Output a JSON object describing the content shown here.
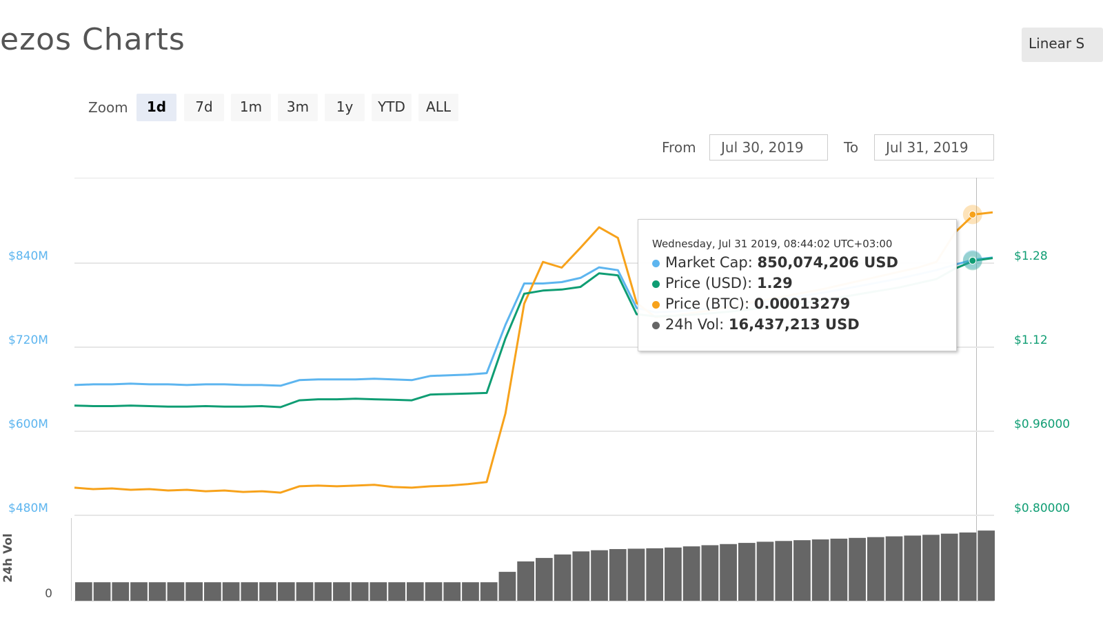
{
  "header": {
    "title": "ezos Charts",
    "scale_button": "Linear S"
  },
  "zoom": {
    "label": "Zoom",
    "buttons": [
      "1d",
      "7d",
      "1m",
      "3m",
      "1y",
      "YTD",
      "ALL"
    ],
    "active": 0
  },
  "range": {
    "from_label": "From",
    "from": "Jul 30, 2019",
    "to_label": "To",
    "to": "Jul 31, 2019"
  },
  "tooltip": {
    "header": "Wednesday, Jul 31 2019, 08:44:02 UTC+03:00",
    "rows": [
      {
        "label": "Market Cap:",
        "value": "850,074,206 USD",
        "color": "#5db5ef"
      },
      {
        "label": "Price (USD):",
        "value": "1.29",
        "color": "#0f9d73"
      },
      {
        "label": "Price (BTC):",
        "value": "0.00013279",
        "color": "#f7a21b"
      },
      {
        "label": "24h Vol:",
        "value": "16,437,213 USD",
        "color": "#666666"
      }
    ]
  },
  "chart_data": {
    "type": "line",
    "categories": [
      null,
      null,
      null,
      null,
      null,
      null,
      null,
      null,
      null,
      null,
      null,
      null,
      null,
      null,
      null,
      null,
      null,
      null,
      null,
      null,
      null,
      null,
      null,
      null,
      null,
      null,
      null,
      null,
      null,
      null,
      null,
      null,
      null,
      null,
      null,
      null,
      null,
      null,
      null,
      null,
      null,
      null,
      null,
      null,
      null,
      null,
      null,
      null,
      null,
      null
    ],
    "ylim": [
      480,
      962
    ],
    "yticks": [
      {
        "value": 480,
        "label": "$480M"
      },
      {
        "value": 600,
        "label": "$600M"
      },
      {
        "value": 720,
        "label": "$720M"
      },
      {
        "value": 840,
        "label": "$840M"
      }
    ],
    "y2lim": [
      0.8,
      1.443
    ],
    "y2ticks": [
      {
        "value": 0.8,
        "label": "$0.80000"
      },
      {
        "value": 0.96,
        "label": "$0.96000"
      },
      {
        "value": 1.12,
        "label": "$1.12"
      },
      {
        "value": 1.28,
        "label": "$1.28"
      }
    ],
    "y3lim": [
      9e-05,
      0.0001377
    ],
    "vol_label": "24h Vol",
    "vol_ylim": [
      0,
      20000000
    ],
    "vol_yticks": [
      0
    ],
    "grid": true,
    "series": [
      {
        "axis": "y",
        "kind": "line",
        "color": "#5db5ef",
        "values": [
          666,
          667,
          667,
          668,
          667,
          667,
          666,
          667,
          667,
          666,
          666,
          665,
          673,
          674,
          674,
          674,
          675,
          674,
          673,
          679,
          680,
          681,
          683,
          752,
          811,
          811,
          813,
          819,
          834,
          830,
          776,
          770,
          771,
          773,
          776,
          779,
          782,
          786,
          790,
          794,
          798,
          803,
          808,
          813,
          818,
          824,
          830,
          838,
          845,
          848
        ]
      },
      {
        "axis": "y3",
        "kind": "line",
        "color": "#f7a21b",
        "values": [
          9.39e-05,
          9.37e-05,
          9.38e-05,
          9.36e-05,
          9.37e-05,
          9.35e-05,
          9.36e-05,
          9.34e-05,
          9.35e-05,
          9.33e-05,
          9.34e-05,
          9.32e-05,
          9.41e-05,
          9.42e-05,
          9.41e-05,
          9.42e-05,
          9.43e-05,
          9.4e-05,
          9.39e-05,
          9.41e-05,
          9.42e-05,
          9.44e-05,
          9.47e-05,
          0.0001044,
          0.0001199,
          0.0001258,
          0.000125,
          0.0001278,
          0.0001307,
          0.0001292,
          0.00012,
          0.000118,
          0.0001182,
          0.0001186,
          0.000119,
          0.0001195,
          0.00012,
          0.0001205,
          0.000121,
          0.0001215,
          0.000122,
          0.0001226,
          0.0001232,
          0.0001238,
          0.0001244,
          0.000125,
          0.0001258,
          0.00013,
          0.0001325,
          0.0001328
        ]
      },
      {
        "axis": "y2",
        "kind": "line",
        "color": "#0f9d73",
        "values": [
          1.009,
          1.008,
          1.008,
          1.009,
          1.008,
          1.007,
          1.007,
          1.008,
          1.007,
          1.007,
          1.008,
          1.006,
          1.019,
          1.021,
          1.021,
          1.022,
          1.021,
          1.02,
          1.019,
          1.03,
          1.031,
          1.032,
          1.033,
          1.137,
          1.222,
          1.228,
          1.23,
          1.235,
          1.261,
          1.257,
          1.183,
          1.179,
          1.18,
          1.182,
          1.185,
          1.188,
          1.192,
          1.196,
          1.2,
          1.205,
          1.21,
          1.216,
          1.222,
          1.228,
          1.234,
          1.242,
          1.25,
          1.27,
          1.285,
          1.29
        ]
      },
      {
        "axis": "vol",
        "kind": "bar",
        "color": "#666666",
        "values": [
          3000000,
          3000000,
          3000000,
          3000000,
          3000000,
          3000000,
          3000000,
          3000000,
          3000000,
          3000000,
          3000000,
          3000000,
          3000000,
          3000000,
          3000000,
          3000000,
          3000000,
          3000000,
          3000000,
          3000000,
          3000000,
          3000000,
          3000000,
          5700000,
          8400000,
          9300000,
          10200000,
          11000000,
          11300000,
          11600000,
          11700000,
          11800000,
          12000000,
          12300000,
          12600000,
          12900000,
          13200000,
          13500000,
          13700000,
          13900000,
          14100000,
          14300000,
          14500000,
          14700000,
          14900000,
          15100000,
          15300000,
          15600000,
          15900000,
          16400000
        ]
      }
    ],
    "left_tick_color": "#5db5ef",
    "right_tick_color": "#0f9d73"
  }
}
